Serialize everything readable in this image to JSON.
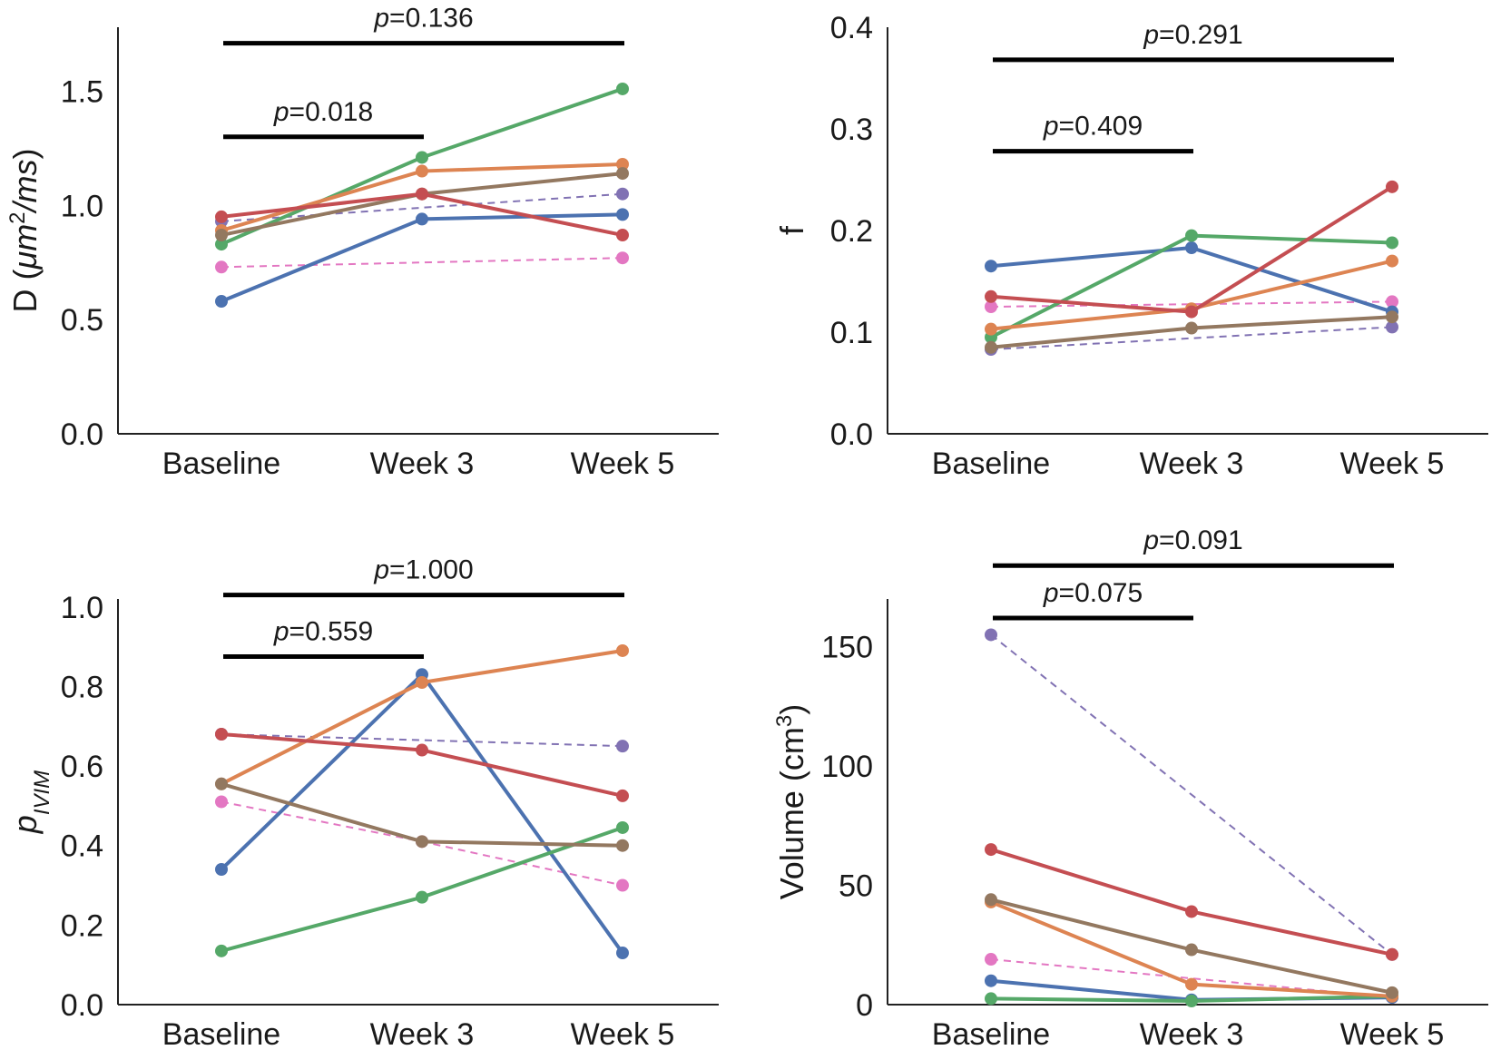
{
  "chart_data": [
    {
      "id": "D",
      "type": "line",
      "title": "",
      "xlabel": "",
      "ylabel_parts": [
        {
          "t": "D (",
          "style": "normal"
        },
        {
          "t": "μm",
          "style": "italic"
        },
        {
          "t": "2",
          "style": "sup"
        },
        {
          "t": "/ms",
          "style": "italic"
        },
        {
          "t": ")",
          "style": "normal"
        }
      ],
      "categories": [
        "Baseline",
        "Week 3",
        "Week 5"
      ],
      "ylim": [
        0,
        1.78
      ],
      "yticks": [
        0.0,
        0.5,
        1.0,
        1.5
      ],
      "ytick_labels": [
        "0.0",
        "0.5",
        "1.0",
        "1.5"
      ],
      "series": [
        {
          "name": "pink",
          "color": "#e377c2",
          "dashed": true,
          "values": [
            0.73,
            null,
            0.77
          ]
        },
        {
          "name": "purple",
          "color": "#8172b3",
          "dashed": true,
          "values": [
            0.93,
            null,
            1.05
          ]
        },
        {
          "name": "blue",
          "color": "#4c72b0",
          "dashed": false,
          "values": [
            0.58,
            0.94,
            0.96
          ]
        },
        {
          "name": "green",
          "color": "#55a868",
          "dashed": false,
          "values": [
            0.83,
            1.21,
            1.51
          ]
        },
        {
          "name": "orange",
          "color": "#dd8452",
          "dashed": false,
          "values": [
            0.89,
            1.15,
            1.18
          ]
        },
        {
          "name": "brown",
          "color": "#937860",
          "dashed": false,
          "values": [
            0.87,
            1.05,
            1.14
          ]
        },
        {
          "name": "red",
          "color": "#c44e52",
          "dashed": false,
          "values": [
            0.95,
            1.05,
            0.87
          ]
        }
      ],
      "brackets": [
        {
          "from": 0,
          "to": 2,
          "y": 1.71,
          "p_prefix": "p",
          "p_value": "=0.136"
        },
        {
          "from": 0,
          "to": 1,
          "y": 1.3,
          "p_prefix": "p",
          "p_value": "=0.018"
        }
      ]
    },
    {
      "id": "f",
      "type": "line",
      "title": "",
      "xlabel": "",
      "ylabel_parts": [
        {
          "t": "f",
          "style": "normal"
        }
      ],
      "categories": [
        "Baseline",
        "Week 3",
        "Week 5"
      ],
      "ylim": [
        0,
        0.4
      ],
      "yticks": [
        0.0,
        0.1,
        0.2,
        0.3,
        0.4
      ],
      "ytick_labels": [
        "0.0",
        "0.1",
        "0.2",
        "0.3",
        "0.4"
      ],
      "series": [
        {
          "name": "pink",
          "color": "#e377c2",
          "dashed": true,
          "values": [
            0.125,
            null,
            0.13
          ]
        },
        {
          "name": "purple",
          "color": "#8172b3",
          "dashed": true,
          "values": [
            0.083,
            null,
            0.105
          ]
        },
        {
          "name": "blue",
          "color": "#4c72b0",
          "dashed": false,
          "values": [
            0.165,
            0.183,
            0.12
          ]
        },
        {
          "name": "green",
          "color": "#55a868",
          "dashed": false,
          "values": [
            0.095,
            0.195,
            0.188
          ]
        },
        {
          "name": "orange",
          "color": "#dd8452",
          "dashed": false,
          "values": [
            0.103,
            0.123,
            0.17
          ]
        },
        {
          "name": "brown",
          "color": "#937860",
          "dashed": false,
          "values": [
            0.085,
            0.104,
            0.115
          ]
        },
        {
          "name": "red",
          "color": "#c44e52",
          "dashed": false,
          "values": [
            0.135,
            0.12,
            0.243
          ]
        }
      ],
      "brackets": [
        {
          "from": 0,
          "to": 2,
          "y": 0.368,
          "p_prefix": "p",
          "p_value": "=0.291"
        },
        {
          "from": 0,
          "to": 1,
          "y": 0.278,
          "p_prefix": "p",
          "p_value": "=0.409"
        }
      ]
    },
    {
      "id": "pIVIM",
      "type": "line",
      "title": "",
      "xlabel": "",
      "ylabel_parts": [
        {
          "t": "p",
          "style": "italic"
        },
        {
          "t": "IVIM",
          "style": "sub-italic"
        }
      ],
      "categories": [
        "Baseline",
        "Week 3",
        "Week 5"
      ],
      "ylim": [
        0,
        1.02
      ],
      "yticks": [
        0.0,
        0.2,
        0.4,
        0.6,
        0.8,
        1.0
      ],
      "ytick_labels": [
        "0.0",
        "0.2",
        "0.4",
        "0.6",
        "0.8",
        "1.0"
      ],
      "series": [
        {
          "name": "pink",
          "color": "#e377c2",
          "dashed": true,
          "values": [
            0.51,
            0.41,
            0.3
          ]
        },
        {
          "name": "purple",
          "color": "#8172b3",
          "dashed": true,
          "values": [
            0.68,
            null,
            0.65
          ]
        },
        {
          "name": "blue",
          "color": "#4c72b0",
          "dashed": false,
          "values": [
            0.34,
            0.83,
            0.13
          ]
        },
        {
          "name": "green",
          "color": "#55a868",
          "dashed": false,
          "values": [
            0.135,
            0.27,
            0.445
          ]
        },
        {
          "name": "orange",
          "color": "#dd8452",
          "dashed": false,
          "values": [
            0.555,
            0.81,
            0.89
          ]
        },
        {
          "name": "brown",
          "color": "#937860",
          "dashed": false,
          "values": [
            0.555,
            0.41,
            0.4
          ]
        },
        {
          "name": "red",
          "color": "#c44e52",
          "dashed": false,
          "values": [
            0.68,
            0.64,
            0.525
          ]
        }
      ],
      "brackets": [
        {
          "from": 0,
          "to": 2,
          "y": 1.03,
          "p_prefix": "p",
          "p_value": "=1.000"
        },
        {
          "from": 0,
          "to": 1,
          "y": 0.875,
          "p_prefix": "p",
          "p_value": "=0.559"
        }
      ]
    },
    {
      "id": "Volume",
      "type": "line",
      "title": "",
      "xlabel": "",
      "ylabel_parts": [
        {
          "t": "Volume (cm",
          "style": "normal"
        },
        {
          "t": "3",
          "style": "sup"
        },
        {
          "t": ")",
          "style": "normal"
        }
      ],
      "categories": [
        "Baseline",
        "Week 3",
        "Week 5"
      ],
      "ylim": [
        0,
        170
      ],
      "yticks": [
        0,
        50,
        100,
        150
      ],
      "ytick_labels": [
        "0",
        "50",
        "100",
        "150"
      ],
      "series": [
        {
          "name": "pink",
          "color": "#e377c2",
          "dashed": true,
          "values": [
            19,
            null,
            3
          ]
        },
        {
          "name": "purple",
          "color": "#8172b3",
          "dashed": true,
          "values": [
            155,
            null,
            21
          ]
        },
        {
          "name": "blue",
          "color": "#4c72b0",
          "dashed": false,
          "values": [
            10,
            2,
            3
          ]
        },
        {
          "name": "green",
          "color": "#55a868",
          "dashed": false,
          "values": [
            2.5,
            1.5,
            3.5
          ]
        },
        {
          "name": "orange",
          "color": "#dd8452",
          "dashed": false,
          "values": [
            43,
            8.5,
            3.5
          ]
        },
        {
          "name": "brown",
          "color": "#937860",
          "dashed": false,
          "values": [
            44,
            23,
            5
          ]
        },
        {
          "name": "red",
          "color": "#c44e52",
          "dashed": false,
          "values": [
            65,
            39,
            21
          ]
        }
      ],
      "brackets": [
        {
          "from": 0,
          "to": 2,
          "y": 184,
          "p_prefix": "p",
          "p_value": "=0.091"
        },
        {
          "from": 0,
          "to": 1,
          "y": 162,
          "p_prefix": "p",
          "p_value": "=0.075"
        }
      ]
    }
  ]
}
